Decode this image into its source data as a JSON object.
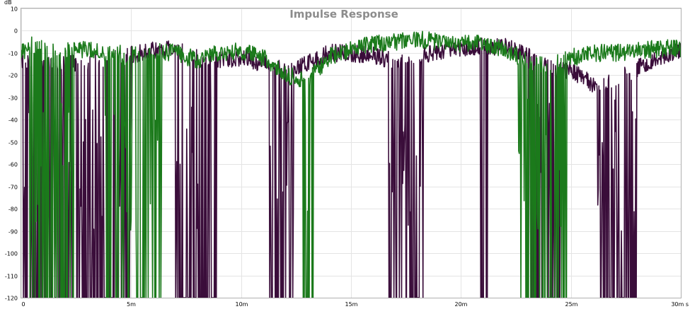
{
  "chart_data": {
    "type": "line",
    "title": "Impulse Response",
    "ylabel": "dB",
    "xlabel": "",
    "ylim": [
      -120,
      10
    ],
    "xlim": [
      0,
      30
    ],
    "y_ticks": [
      10,
      0,
      -10,
      -20,
      -30,
      -40,
      -50,
      -60,
      -70,
      -80,
      -90,
      -100,
      -110,
      -120
    ],
    "x_ticks": [
      0,
      5,
      10,
      15,
      20,
      25,
      30
    ],
    "x_tick_labels": [
      "0",
      "5m",
      "10m",
      "15m",
      "20m",
      "25m",
      "30m s"
    ],
    "grid": true,
    "series": [
      {
        "color": "#3a0d3a",
        "envelope": {
          "x": [
            0,
            0.5,
            1,
            2,
            3,
            4,
            5,
            6,
            7,
            8,
            9,
            10,
            11,
            12,
            13,
            14,
            15,
            16,
            17,
            18,
            19,
            20,
            21,
            22,
            23,
            24,
            25,
            26,
            27,
            28,
            29,
            30
          ],
          "y": [
            -15,
            -14,
            -16,
            -15,
            -14,
            -13,
            -11,
            -9,
            -8,
            -12,
            -13,
            -12,
            -15,
            -18,
            -15,
            -10,
            -10,
            -11,
            -14,
            -12,
            -9,
            -8,
            -7,
            -7,
            -10,
            -16,
            -18,
            -24,
            -22,
            -17,
            -13,
            -9
          ]
        },
        "dropouts": [
          [
            0.1,
            2.3,
            0.55
          ],
          [
            2.5,
            5.0,
            0.75
          ],
          [
            7.0,
            8.9,
            0.8
          ],
          [
            11.3,
            12.4,
            0.6
          ],
          [
            16.7,
            18.3,
            0.65
          ],
          [
            20.8,
            21.2,
            0.5
          ],
          [
            23.0,
            24.5,
            0.6
          ],
          [
            26.2,
            28.0,
            0.6
          ]
        ]
      },
      {
        "color": "#1b7a1b",
        "envelope": {
          "x": [
            0,
            0.5,
            1,
            2,
            3,
            4,
            5,
            6,
            7,
            8,
            9,
            10,
            11,
            12,
            13,
            14,
            15,
            16,
            17,
            18,
            19,
            20,
            21,
            22,
            23,
            24,
            25,
            26,
            27,
            28,
            29,
            30
          ],
          "y": [
            -10,
            -6,
            -8,
            -9,
            -8,
            -10,
            -11,
            -9,
            -10,
            -13,
            -10,
            -9,
            -12,
            -20,
            -22,
            -12,
            -8,
            -6,
            -5,
            -4,
            -5,
            -6,
            -6,
            -8,
            -14,
            -16,
            -12,
            -10,
            -10,
            -9,
            -8,
            -8
          ]
        },
        "dropouts": [
          [
            0.4,
            2.4,
            0.55
          ],
          [
            3.8,
            6.4,
            0.55
          ],
          [
            12.8,
            13.3,
            0.7
          ],
          [
            22.6,
            24.8,
            0.6
          ]
        ]
      }
    ]
  }
}
